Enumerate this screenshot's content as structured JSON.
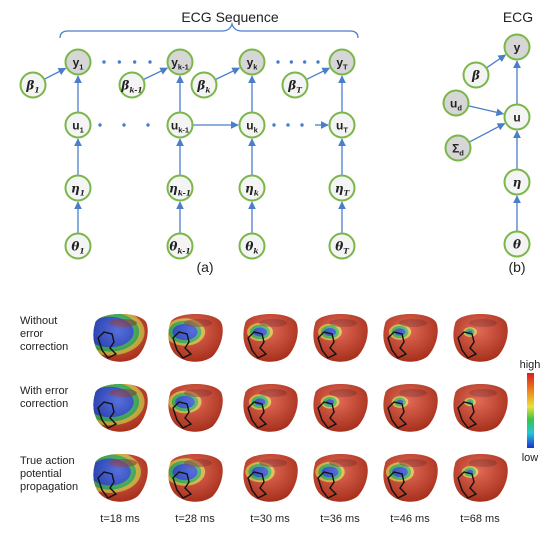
{
  "diagram_a": {
    "title": "ECG Sequence",
    "caption": "(a)",
    "columns": [
      {
        "y": "y",
        "y_sub": "1",
        "beta": "β",
        "beta_sub": "1",
        "u": "u",
        "u_sub": "1",
        "eta": "η",
        "eta_sub": "1",
        "theta": "θ",
        "theta_sub": "1"
      },
      {
        "y": "y",
        "y_sub": "k-1",
        "beta": "β",
        "beta_sub": "k-1",
        "u": "u",
        "u_sub": "k-1",
        "eta": "η",
        "eta_sub": "k-1",
        "theta": "θ",
        "theta_sub": "k-1"
      },
      {
        "y": "y",
        "y_sub": "k",
        "beta": "β",
        "beta_sub": "k",
        "u": "u",
        "u_sub": "k",
        "eta": "η",
        "eta_sub": "k",
        "theta": "θ",
        "theta_sub": "k"
      },
      {
        "y": "y",
        "y_sub": "T",
        "beta": "β",
        "beta_sub": "T",
        "u": "u",
        "u_sub": "T",
        "eta": "η",
        "eta_sub": "T",
        "theta": "θ",
        "theta_sub": "T"
      }
    ]
  },
  "diagram_b": {
    "title": "ECG",
    "caption": "(b)",
    "nodes": {
      "y": "y",
      "beta": "β",
      "ud": "u",
      "ud_sub": "d",
      "sigma": "Σ",
      "sigma_sub": "d",
      "u": "u",
      "eta": "η",
      "theta": "θ"
    }
  },
  "panel": {
    "rows": [
      {
        "label_lines": [
          "Without",
          "error",
          "correction"
        ]
      },
      {
        "label_lines": [
          "With error",
          "correction"
        ]
      },
      {
        "label_lines": [
          "True action",
          "potential",
          "propagation"
        ]
      }
    ],
    "times": [
      "t=18 ms",
      "t=28 ms",
      "t=30 ms",
      "t=36 ms",
      "t=46 ms",
      "t=68 ms"
    ],
    "colorbar": {
      "high": "high",
      "low": "low"
    },
    "colors": {
      "background": "#d83a1f",
      "wave": "#1f3fd0",
      "front": "#2fb24a",
      "mid": "#e8d23a"
    }
  }
}
